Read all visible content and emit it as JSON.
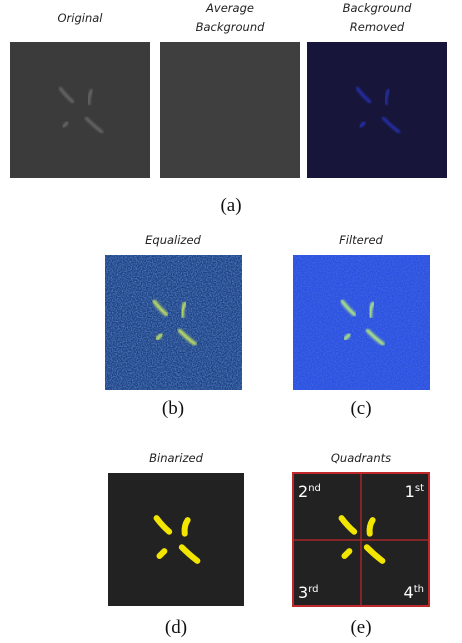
{
  "row_a": {
    "panels": [
      {
        "title": [
          "Original"
        ]
      },
      {
        "title": [
          "Average",
          "Background"
        ]
      },
      {
        "title": [
          "Background",
          "Removed"
        ]
      }
    ],
    "caption": "(a)"
  },
  "row_b": {
    "panels": [
      {
        "title": "Equalized",
        "caption": "(b)"
      },
      {
        "title": "Filtered",
        "caption": "(c)"
      }
    ]
  },
  "row_c": {
    "panels": [
      {
        "title": "Binarized",
        "caption": "(d)"
      },
      {
        "title": "Quadrants",
        "caption": "(e)"
      }
    ],
    "quadrants": [
      {
        "num": "2",
        "suffix": "nd"
      },
      {
        "num": "1",
        "suffix": "st"
      },
      {
        "num": "3",
        "suffix": "rd"
      },
      {
        "num": "4",
        "suffix": "th"
      }
    ]
  }
}
